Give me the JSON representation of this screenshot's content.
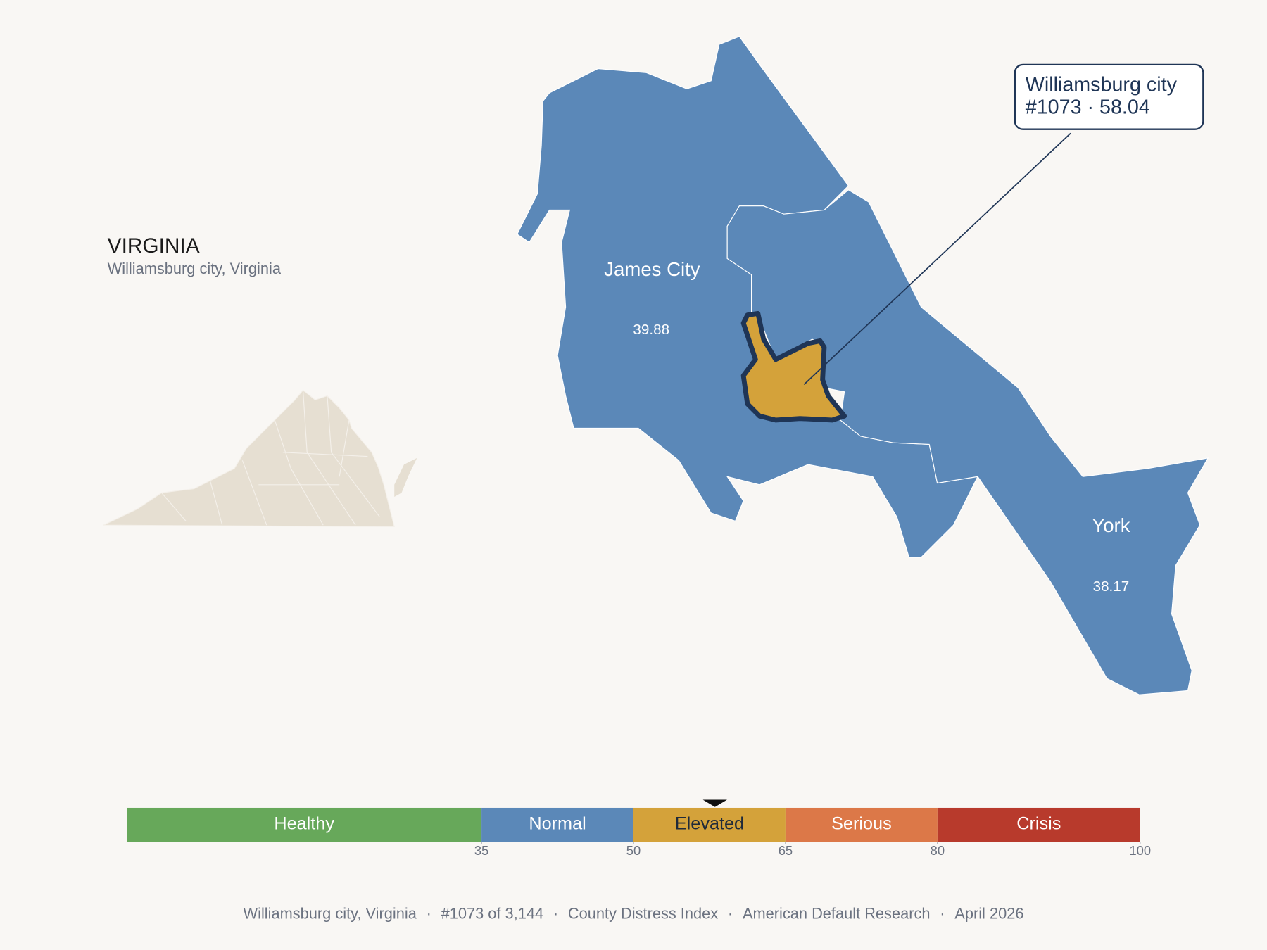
{
  "header": {
    "title": "VIRGINIA",
    "subtitle": "Williamsburg city, Virginia"
  },
  "regions": [
    {
      "name": "James City",
      "value": 39.88
    },
    {
      "name": "York",
      "value": 38.17
    },
    {
      "name": "Williamsburg city",
      "value": 58.04,
      "highlight": true
    }
  ],
  "callout": {
    "title": "Williamsburg city",
    "detail": "#1073 · 58.04"
  },
  "scale": {
    "xlim": [
      0,
      100
    ],
    "xticks": [
      35,
      50,
      65,
      80,
      100
    ],
    "bands": [
      {
        "label": "Healthy",
        "color": "#67a85a",
        "text_color": "#ffffff"
      },
      {
        "label": "Normal",
        "color": "#5b88b8",
        "text_color": "#ffffff"
      },
      {
        "label": "Elevated",
        "color": "#d4a23a",
        "text_color": "#1f2a3a"
      },
      {
        "label": "Serious",
        "color": "#dc7848",
        "text_color": "#ffffff"
      },
      {
        "label": "Crisis",
        "color": "#b83a2c",
        "text_color": "#ffffff"
      }
    ]
  },
  "footer": {
    "items": [
      "Williamsburg city, Virginia",
      "#1073 of 3,144",
      "County Distress Index",
      "American Default Research",
      "April 2026"
    ],
    "separator": "·"
  }
}
